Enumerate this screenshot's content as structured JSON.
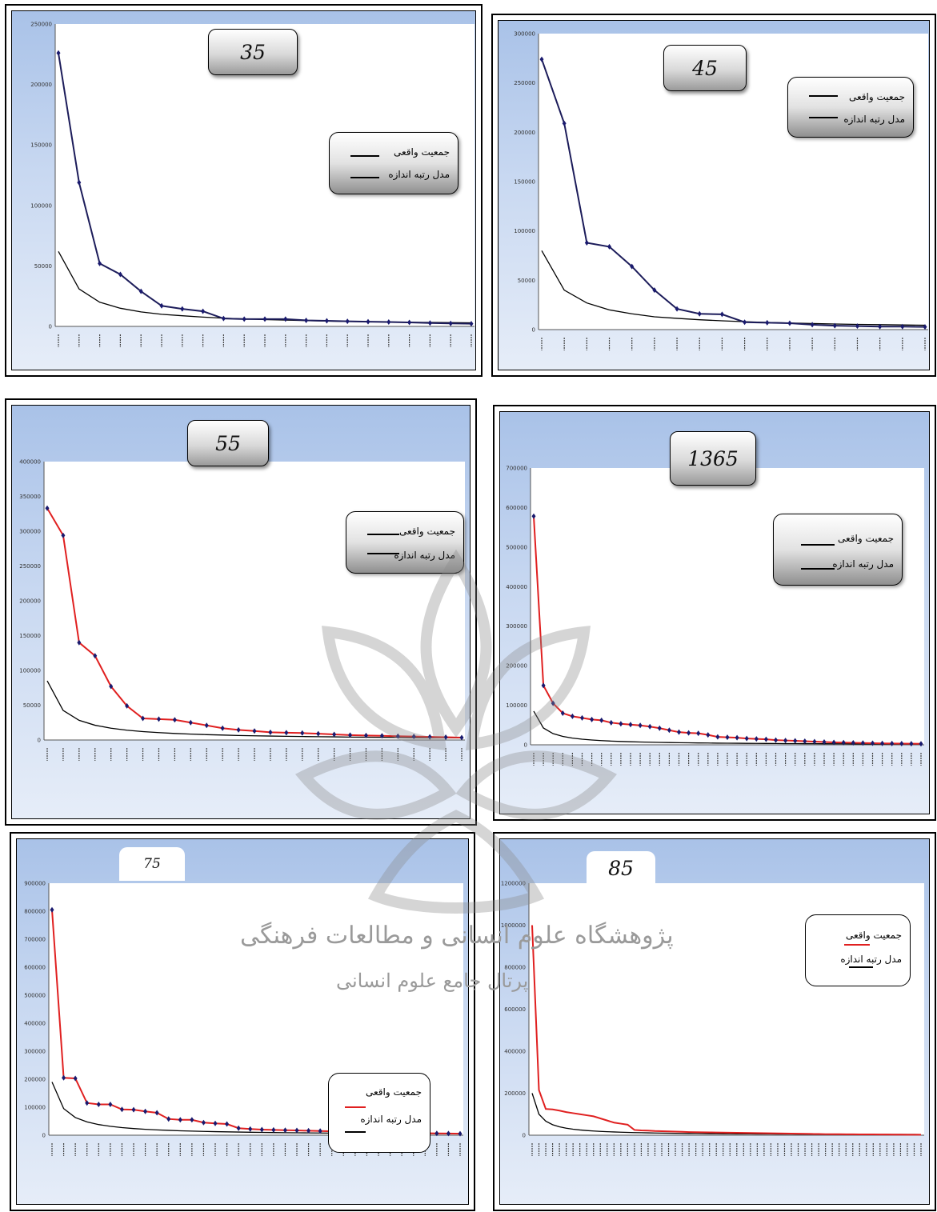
{
  "colors": {
    "real_line_navy": "#1c1c5a",
    "real_line_red": "#e02020",
    "model_line": "#000000",
    "marker": "#1a1a6e"
  },
  "legend": {
    "real_label": "جمعیت واقعی",
    "model_label": "مدل رتبه اندازه"
  },
  "watermark": {
    "line1": "پژوهشگاه علوم انسانی و مطالعات فرهنگی",
    "line2": "پرتال جامع علوم انسانی"
  },
  "charts": [
    {
      "id": "c35",
      "title": "35",
      "ymax": 250000,
      "ystep": 50000,
      "yticks": [
        "0",
        "50000",
        "100000",
        "150000",
        "200000",
        "250000"
      ],
      "real": [
        226000,
        119000,
        52000,
        43000,
        29000,
        17000,
        14500,
        12500,
        6500,
        6000,
        6000,
        6000,
        5000,
        4600,
        4200,
        3900,
        3600,
        3300,
        2800,
        2500,
        2200
      ],
      "model": [
        62000,
        31000,
        20000,
        15000,
        12000,
        10000,
        8800,
        7700,
        6800,
        6200,
        5600,
        5200,
        4800,
        4400,
        4100,
        3900,
        3600,
        3400,
        3300,
        3100,
        3000
      ]
    },
    {
      "id": "c45",
      "title": "45",
      "ymax": 300000,
      "ystep": 50000,
      "yticks": [
        "0",
        "50000",
        "100000",
        "150000",
        "200000",
        "250000",
        "300000"
      ],
      "real": [
        274000,
        209000,
        88000,
        84000,
        64000,
        40000,
        21000,
        16000,
        15500,
        7500,
        7000,
        6500,
        5000,
        4000,
        3500,
        3000,
        3000,
        2700
      ],
      "model": [
        80000,
        40000,
        27000,
        20000,
        16000,
        13000,
        11400,
        10000,
        8900,
        8000,
        7300,
        6700,
        6200,
        5700,
        5300,
        5000,
        4700,
        4400
      ]
    },
    {
      "id": "c55",
      "title": "55",
      "ymax": 400000,
      "ystep": 50000,
      "yticks": [
        "0",
        "50000",
        "100000",
        "150000",
        "200000",
        "250000",
        "300000",
        "350000",
        "400000"
      ],
      "real": [
        333000,
        294000,
        140000,
        121000,
        77000,
        49000,
        31000,
        30000,
        29000,
        25000,
        21000,
        17000,
        14500,
        13000,
        11000,
        10500,
        10000,
        9000,
        8000,
        7000,
        6500,
        6000,
        5500,
        5000,
        4500,
        4000,
        3500
      ],
      "model": [
        85000,
        42500,
        28300,
        21200,
        17000,
        14100,
        12100,
        10600,
        9400,
        8500,
        7700,
        7100,
        6500,
        6000,
        5700,
        5300,
        5000,
        4700,
        4500,
        4200,
        4000,
        3900,
        3700,
        3500,
        3400,
        3300,
        3100
      ]
    },
    {
      "id": "c1365",
      "title": "1365",
      "ymax": 700000,
      "ystep": 100000,
      "yticks": [
        "0",
        "100000",
        "200000",
        "300000",
        "400000",
        "500000",
        "600000",
        "700000"
      ],
      "real": [
        578000,
        150000,
        105000,
        80000,
        72000,
        68000,
        64000,
        62000,
        56000,
        53000,
        51000,
        49000,
        46000,
        42000,
        37000,
        32000,
        30000,
        29000,
        25000,
        20000,
        19000,
        18000,
        16000,
        15000,
        14000,
        12000,
        11000,
        10000,
        9000,
        8000,
        7000,
        6000,
        5500,
        5000,
        4500,
        4000,
        3500,
        3200,
        3000,
        2800,
        2600
      ],
      "model": [
        85000,
        42500,
        28300,
        21200,
        17000,
        14100,
        12100,
        10600,
        9400,
        8500,
        7700,
        7100,
        6500,
        6000,
        5700,
        5300,
        5000,
        4700,
        4500,
        4200,
        4000,
        3900,
        3700,
        3500,
        3400,
        3300,
        3100,
        3000,
        2900,
        2800,
        2700,
        2600,
        2500,
        2400,
        2400,
        2300,
        2200,
        2200,
        2100,
        2000,
        2000
      ]
    },
    {
      "id": "c75",
      "title": "75",
      "ymax": 900000,
      "ystep": 100000,
      "yticks": [
        "0",
        "100000",
        "200000",
        "300000",
        "400000",
        "500000",
        "600000",
        "700000",
        "800000",
        "900000"
      ],
      "real": [
        805000,
        205000,
        203000,
        115000,
        110000,
        110000,
        92000,
        91000,
        85000,
        80000,
        58000,
        55000,
        55000,
        45000,
        42000,
        40000,
        25000,
        22000,
        20000,
        19000,
        18000,
        17000,
        16000,
        15000,
        14000,
        13000,
        12000,
        11000,
        10000,
        9000,
        8000,
        7500,
        7000,
        6500,
        6000,
        5500
      ],
      "model": [
        190000,
        95000,
        63000,
        47500,
        38000,
        31700,
        27100,
        23700,
        21100,
        19000,
        17300,
        15800,
        14600,
        13600,
        12700,
        11900,
        11200,
        10600,
        10000,
        9500,
        9000,
        8600,
        8300,
        7900,
        7600,
        7300,
        7000,
        6800,
        6600,
        6300,
        6100,
        5900,
        5800,
        5600,
        5400,
        5300
      ]
    },
    {
      "id": "c85",
      "title": "85",
      "ymax": 1200000,
      "ystep": 200000,
      "yticks": [
        "0",
        "200000",
        "400000",
        "600000",
        "800000",
        "1000000",
        "1200000"
      ],
      "real": [
        1000000,
        215000,
        125000,
        123000,
        117000,
        110000,
        105000,
        100000,
        95000,
        90000,
        80000,
        70000,
        60000,
        55000,
        50000,
        25000,
        23000,
        22000,
        20000,
        19000,
        18000,
        17000,
        16000,
        15000,
        14500,
        14000,
        13500,
        13000,
        12500,
        12000,
        11500,
        11000,
        10500,
        10000,
        9500,
        9000,
        8500,
        8000,
        7500,
        7000,
        6500,
        6000,
        5500,
        5000,
        4800,
        4600,
        4400,
        4200,
        4000,
        3800,
        3600,
        3400,
        3200,
        3000,
        2800,
        2600,
        2500,
        2400
      ],
      "model": [
        200000,
        100000,
        66700,
        50000,
        40000,
        33300,
        28600,
        25000,
        22200,
        20000,
        18200,
        16700,
        15400,
        14300,
        13300,
        12500,
        11800,
        11100,
        10500,
        10000,
        9500,
        9100,
        8700,
        8300,
        8000,
        7700,
        7400,
        7100,
        6900,
        6700,
        6500,
        6300,
        6100,
        5900,
        5700,
        5600,
        5400,
        5300,
        5100,
        5000,
        4900,
        4800,
        4700,
        4500,
        4400,
        4400,
        4300,
        4200,
        4100,
        4000,
        3900,
        3800,
        3800,
        3700,
        3600,
        3600,
        3500,
        3400
      ]
    }
  ]
}
